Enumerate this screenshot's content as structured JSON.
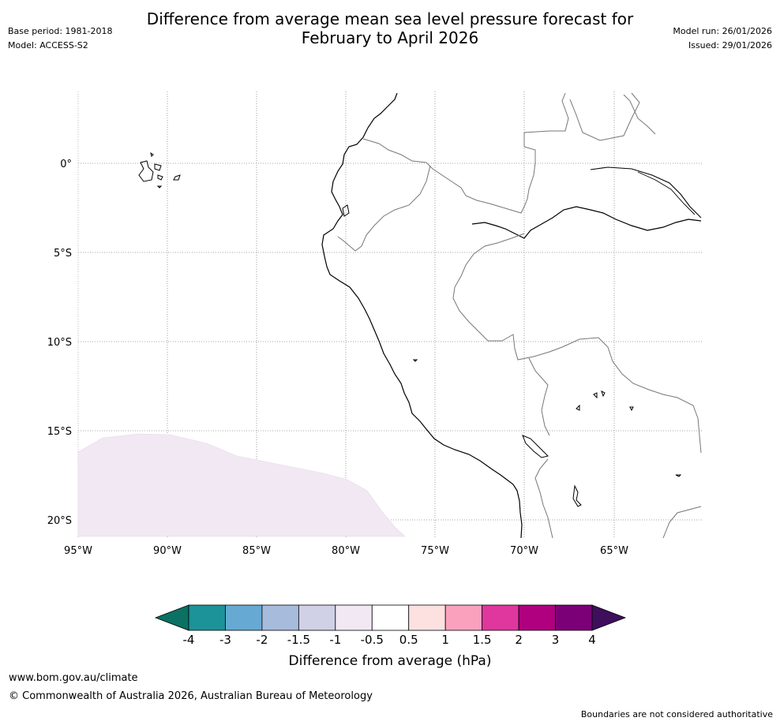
{
  "header": {
    "title_line1": "Difference from average mean sea level pressure forecast for",
    "title_line2": "February to April 2026",
    "base_period": "Base period: 1981-2018",
    "model": "Model: ACCESS-S2",
    "model_run": "Model run: 26/01/2026",
    "issued": "Issued: 29/01/2026"
  },
  "map": {
    "lat_labels": [
      "0°",
      "5°S",
      "10°S",
      "15°S",
      "20°S"
    ],
    "lon_labels": [
      "95°W",
      "90°W",
      "85°W",
      "80°W",
      "75°W",
      "70°W",
      "65°W"
    ],
    "anomaly_region": {
      "category": "-0.5 to -1",
      "location": "south-west corner (Pacific west of Peru/Chile)"
    }
  },
  "colorbar": {
    "title": "Difference from average (hPa)",
    "tick_labels": [
      "-4",
      "-3",
      "-2",
      "-1.5",
      "-1",
      "-0.5",
      "0.5",
      "1",
      "1.5",
      "2",
      "3",
      "4"
    ],
    "under_color": "#0a7163",
    "over_color": "#3f0e5c",
    "colors": [
      "#1c9299",
      "#66aad4",
      "#a7bbdc",
      "#d0d0e6",
      "#f1e8f3",
      "#ffffff",
      "#fde1e1",
      "#f9a1bd",
      "#df379e",
      "#b0007f",
      "#7b0077"
    ]
  },
  "footer": {
    "url": "www.bom.gov.au/climate",
    "copyright": "© Commonwealth of Australia 2026, Australian Bureau of Meteorology",
    "disclaimer": "Boundaries are not considered authoritative"
  }
}
